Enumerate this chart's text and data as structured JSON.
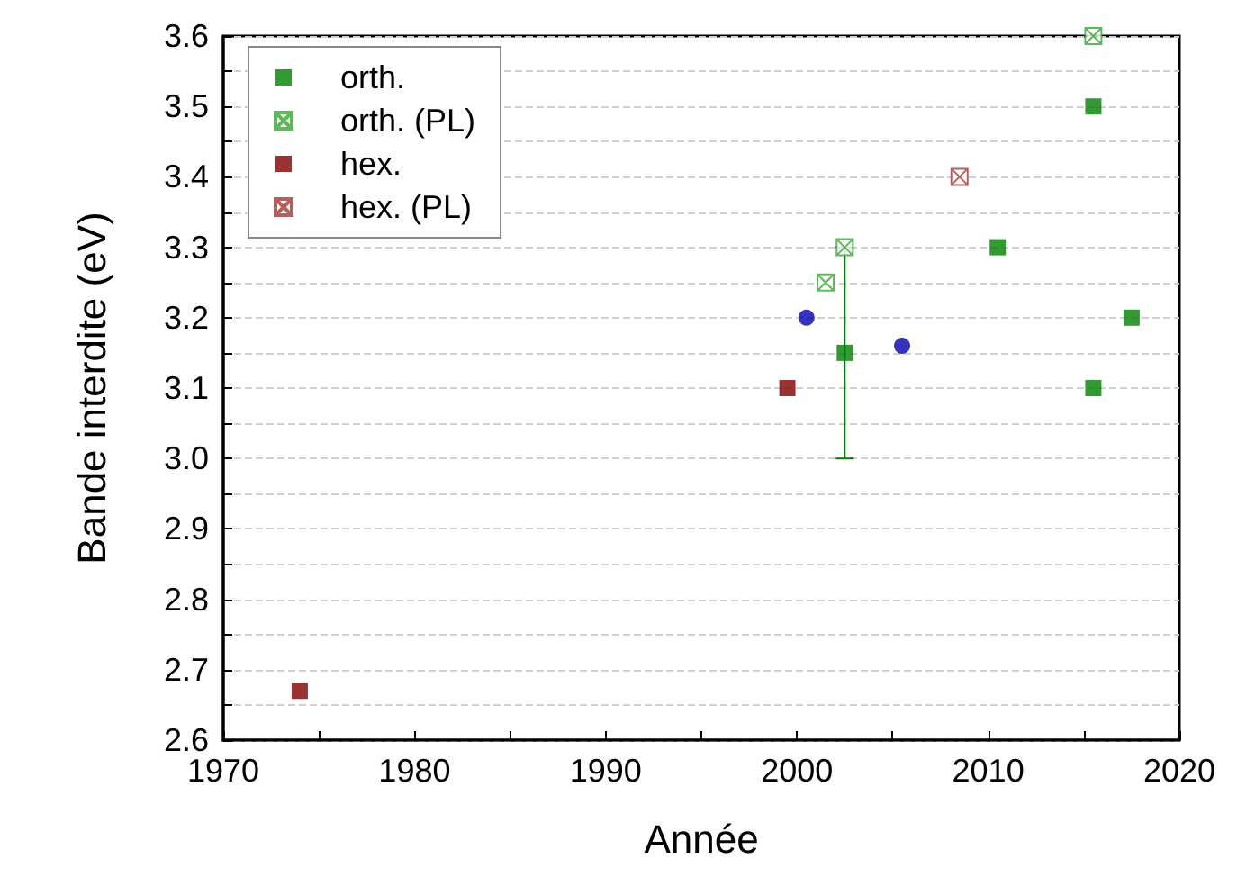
{
  "chart_data": {
    "type": "scatter",
    "xlabel": "Année",
    "ylabel": "Bande interdite (eV)",
    "xlim": [
      1970,
      2020
    ],
    "xticks": [
      1970,
      {
        "value": 1975,
        "label": null
      },
      1980,
      {
        "value": 1985,
        "label": null
      },
      1990,
      {
        "value": 1995,
        "label": null
      },
      2000,
      {
        "value": 2005,
        "label": null
      },
      2010,
      {
        "value": 2015,
        "label": null
      },
      2020
    ],
    "ylim": [
      2.6,
      3.6
    ],
    "yticks": [
      2.6,
      {
        "value": 2.65,
        "label": null
      },
      2.7,
      {
        "value": 2.75,
        "label": null
      },
      2.8,
      {
        "value": 2.85,
        "label": null
      },
      2.9,
      {
        "value": 2.95,
        "label": null
      },
      {
        "value": 3,
        "label": "3.0"
      },
      {
        "value": 3.05,
        "label": null
      },
      3.1,
      {
        "value": 3.15,
        "label": null
      },
      3.2,
      {
        "value": 3.25,
        "label": null
      },
      3.3,
      {
        "value": 3.35,
        "label": null
      },
      3.4,
      {
        "value": 3.45,
        "label": null
      },
      3.5,
      {
        "value": 3.55,
        "label": null
      },
      3.6
    ],
    "grid": "y",
    "legend": "top left",
    "series": [
      {
        "name": "orth.",
        "color": "#008000",
        "marker": "square",
        "x": [
          2002.5,
          2010.5,
          2015.5,
          2015.5,
          2017.5
        ],
        "values": [
          3.15,
          3.3,
          3.5,
          3.1,
          3.2
        ],
        "errors": [
          [
            3.0,
            3.3
          ],
          null,
          null,
          null,
          null
        ]
      },
      {
        "name": "orth. (PL)",
        "color": "#33a833",
        "marker": "cross",
        "x": [
          2001.5,
          2002.5,
          2015.5
        ],
        "values": [
          3.25,
          3.3,
          3.6
        ]
      },
      {
        "name": "hex.",
        "color": "#800000",
        "marker": "square",
        "x": [
          1974,
          1999.5
        ],
        "values": [
          2.67,
          3.1
        ]
      },
      {
        "name": "hex. (PL)",
        "color": "#a03838",
        "marker": "cross",
        "x": [
          2008.5
        ],
        "values": [
          3.4
        ]
      },
      {
        "color": "#0000b0",
        "marker": "circle",
        "x": [
          2000.5,
          2005.5
        ],
        "values": [
          3.2,
          3.16
        ]
      }
    ]
  }
}
